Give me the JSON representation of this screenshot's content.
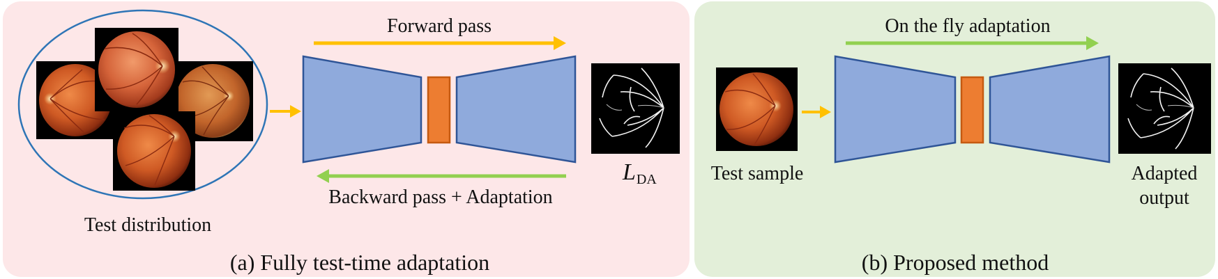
{
  "panel_a": {
    "caption": "(a) Fully test-time adaptation",
    "forward_label": "Forward pass",
    "backward_label": "Backward pass + Adaptation",
    "distribution_label": "Test distribution",
    "loss_symbol": "L",
    "loss_subscript": "DA"
  },
  "panel_b": {
    "caption": "(b) Proposed method",
    "adaptation_label": "On the fly adaptation",
    "input_label": "Test sample",
    "output_label_line1": "Adapted",
    "output_label_line2": "output"
  },
  "colors": {
    "panel_a_bg": "#fde7e8",
    "panel_b_bg": "#e3efd9",
    "encoder_fill": "#8faadc",
    "encoder_stroke": "#2f5597",
    "bottleneck_fill": "#ed7d31",
    "bottleneck_stroke": "#c55a11",
    "forward_arrow": "#ffc000",
    "backward_arrow": "#92d050",
    "ellipse_stroke": "#2e75b6"
  },
  "icons": {
    "fundus": "fundus-image-icon",
    "vessel": "vessel-segmentation-icon"
  }
}
